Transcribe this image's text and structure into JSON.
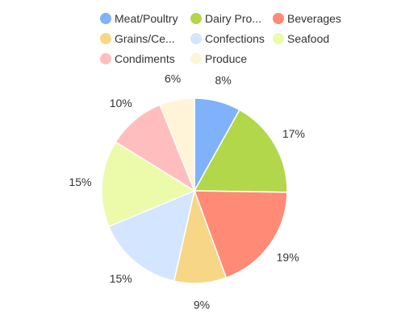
{
  "chart_data": {
    "type": "pie",
    "title": "",
    "legend_position": "top",
    "start_angle_deg": 0,
    "direction": "clockwise",
    "slices": [
      {
        "label": "Meat/Poultry",
        "legend_text": "Meat/Poultry",
        "value": 8,
        "value_label": "8%",
        "color": "#7fb2fb"
      },
      {
        "label": "Dairy Products",
        "legend_text": "Dairy Pro...",
        "value": 17,
        "value_label": "17%",
        "color": "#b2d74a"
      },
      {
        "label": "Beverages",
        "legend_text": "Beverages",
        "value": 19,
        "value_label": "19%",
        "color": "#ff8a75"
      },
      {
        "label": "Grains/Cereals",
        "legend_text": "Grains/Ce...",
        "value": 9,
        "value_label": "9%",
        "color": "#f7d685"
      },
      {
        "label": "Confections",
        "legend_text": "Confections",
        "value": 15,
        "value_label": "15%",
        "color": "#d3e5ff"
      },
      {
        "label": "Seafood",
        "legend_text": "Seafood",
        "value": 15,
        "value_label": "15%",
        "color": "#ebfbaa"
      },
      {
        "label": "Condiments",
        "legend_text": "Condiments",
        "value": 10,
        "value_label": "10%",
        "color": "#ffbebd"
      },
      {
        "label": "Produce",
        "legend_text": "Produce",
        "value": 6,
        "value_label": "6%",
        "color": "#fff4d8"
      }
    ]
  }
}
